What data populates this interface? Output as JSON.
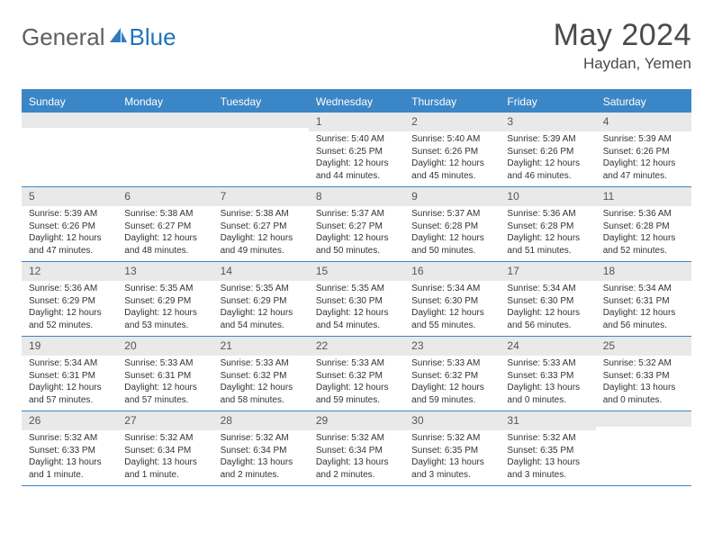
{
  "brand": {
    "left": "General",
    "right": "Blue"
  },
  "title": "May 2024",
  "location": "Haydan, Yemen",
  "colors": {
    "header_bg": "#3b86c6",
    "header_text": "#ffffff",
    "daynum_bg": "#e9e9e9",
    "border": "#3b86c6",
    "logo_gray": "#5f5f5f",
    "logo_blue": "#2175bb",
    "text": "#333333",
    "page_bg": "#ffffff"
  },
  "days_of_week": [
    "Sunday",
    "Monday",
    "Tuesday",
    "Wednesday",
    "Thursday",
    "Friday",
    "Saturday"
  ],
  "weeks": [
    [
      {
        "day": "",
        "sunrise": "",
        "sunset": "",
        "daylight": ""
      },
      {
        "day": "",
        "sunrise": "",
        "sunset": "",
        "daylight": ""
      },
      {
        "day": "",
        "sunrise": "",
        "sunset": "",
        "daylight": ""
      },
      {
        "day": "1",
        "sunrise": "Sunrise: 5:40 AM",
        "sunset": "Sunset: 6:25 PM",
        "daylight": "Daylight: 12 hours and 44 minutes."
      },
      {
        "day": "2",
        "sunrise": "Sunrise: 5:40 AM",
        "sunset": "Sunset: 6:26 PM",
        "daylight": "Daylight: 12 hours and 45 minutes."
      },
      {
        "day": "3",
        "sunrise": "Sunrise: 5:39 AM",
        "sunset": "Sunset: 6:26 PM",
        "daylight": "Daylight: 12 hours and 46 minutes."
      },
      {
        "day": "4",
        "sunrise": "Sunrise: 5:39 AM",
        "sunset": "Sunset: 6:26 PM",
        "daylight": "Daylight: 12 hours and 47 minutes."
      }
    ],
    [
      {
        "day": "5",
        "sunrise": "Sunrise: 5:39 AM",
        "sunset": "Sunset: 6:26 PM",
        "daylight": "Daylight: 12 hours and 47 minutes."
      },
      {
        "day": "6",
        "sunrise": "Sunrise: 5:38 AM",
        "sunset": "Sunset: 6:27 PM",
        "daylight": "Daylight: 12 hours and 48 minutes."
      },
      {
        "day": "7",
        "sunrise": "Sunrise: 5:38 AM",
        "sunset": "Sunset: 6:27 PM",
        "daylight": "Daylight: 12 hours and 49 minutes."
      },
      {
        "day": "8",
        "sunrise": "Sunrise: 5:37 AM",
        "sunset": "Sunset: 6:27 PM",
        "daylight": "Daylight: 12 hours and 50 minutes."
      },
      {
        "day": "9",
        "sunrise": "Sunrise: 5:37 AM",
        "sunset": "Sunset: 6:28 PM",
        "daylight": "Daylight: 12 hours and 50 minutes."
      },
      {
        "day": "10",
        "sunrise": "Sunrise: 5:36 AM",
        "sunset": "Sunset: 6:28 PM",
        "daylight": "Daylight: 12 hours and 51 minutes."
      },
      {
        "day": "11",
        "sunrise": "Sunrise: 5:36 AM",
        "sunset": "Sunset: 6:28 PM",
        "daylight": "Daylight: 12 hours and 52 minutes."
      }
    ],
    [
      {
        "day": "12",
        "sunrise": "Sunrise: 5:36 AM",
        "sunset": "Sunset: 6:29 PM",
        "daylight": "Daylight: 12 hours and 52 minutes."
      },
      {
        "day": "13",
        "sunrise": "Sunrise: 5:35 AM",
        "sunset": "Sunset: 6:29 PM",
        "daylight": "Daylight: 12 hours and 53 minutes."
      },
      {
        "day": "14",
        "sunrise": "Sunrise: 5:35 AM",
        "sunset": "Sunset: 6:29 PM",
        "daylight": "Daylight: 12 hours and 54 minutes."
      },
      {
        "day": "15",
        "sunrise": "Sunrise: 5:35 AM",
        "sunset": "Sunset: 6:30 PM",
        "daylight": "Daylight: 12 hours and 54 minutes."
      },
      {
        "day": "16",
        "sunrise": "Sunrise: 5:34 AM",
        "sunset": "Sunset: 6:30 PM",
        "daylight": "Daylight: 12 hours and 55 minutes."
      },
      {
        "day": "17",
        "sunrise": "Sunrise: 5:34 AM",
        "sunset": "Sunset: 6:30 PM",
        "daylight": "Daylight: 12 hours and 56 minutes."
      },
      {
        "day": "18",
        "sunrise": "Sunrise: 5:34 AM",
        "sunset": "Sunset: 6:31 PM",
        "daylight": "Daylight: 12 hours and 56 minutes."
      }
    ],
    [
      {
        "day": "19",
        "sunrise": "Sunrise: 5:34 AM",
        "sunset": "Sunset: 6:31 PM",
        "daylight": "Daylight: 12 hours and 57 minutes."
      },
      {
        "day": "20",
        "sunrise": "Sunrise: 5:33 AM",
        "sunset": "Sunset: 6:31 PM",
        "daylight": "Daylight: 12 hours and 57 minutes."
      },
      {
        "day": "21",
        "sunrise": "Sunrise: 5:33 AM",
        "sunset": "Sunset: 6:32 PM",
        "daylight": "Daylight: 12 hours and 58 minutes."
      },
      {
        "day": "22",
        "sunrise": "Sunrise: 5:33 AM",
        "sunset": "Sunset: 6:32 PM",
        "daylight": "Daylight: 12 hours and 59 minutes."
      },
      {
        "day": "23",
        "sunrise": "Sunrise: 5:33 AM",
        "sunset": "Sunset: 6:32 PM",
        "daylight": "Daylight: 12 hours and 59 minutes."
      },
      {
        "day": "24",
        "sunrise": "Sunrise: 5:33 AM",
        "sunset": "Sunset: 6:33 PM",
        "daylight": "Daylight: 13 hours and 0 minutes."
      },
      {
        "day": "25",
        "sunrise": "Sunrise: 5:32 AM",
        "sunset": "Sunset: 6:33 PM",
        "daylight": "Daylight: 13 hours and 0 minutes."
      }
    ],
    [
      {
        "day": "26",
        "sunrise": "Sunrise: 5:32 AM",
        "sunset": "Sunset: 6:33 PM",
        "daylight": "Daylight: 13 hours and 1 minute."
      },
      {
        "day": "27",
        "sunrise": "Sunrise: 5:32 AM",
        "sunset": "Sunset: 6:34 PM",
        "daylight": "Daylight: 13 hours and 1 minute."
      },
      {
        "day": "28",
        "sunrise": "Sunrise: 5:32 AM",
        "sunset": "Sunset: 6:34 PM",
        "daylight": "Daylight: 13 hours and 2 minutes."
      },
      {
        "day": "29",
        "sunrise": "Sunrise: 5:32 AM",
        "sunset": "Sunset: 6:34 PM",
        "daylight": "Daylight: 13 hours and 2 minutes."
      },
      {
        "day": "30",
        "sunrise": "Sunrise: 5:32 AM",
        "sunset": "Sunset: 6:35 PM",
        "daylight": "Daylight: 13 hours and 3 minutes."
      },
      {
        "day": "31",
        "sunrise": "Sunrise: 5:32 AM",
        "sunset": "Sunset: 6:35 PM",
        "daylight": "Daylight: 13 hours and 3 minutes."
      },
      {
        "day": "",
        "sunrise": "",
        "sunset": "",
        "daylight": ""
      }
    ]
  ]
}
